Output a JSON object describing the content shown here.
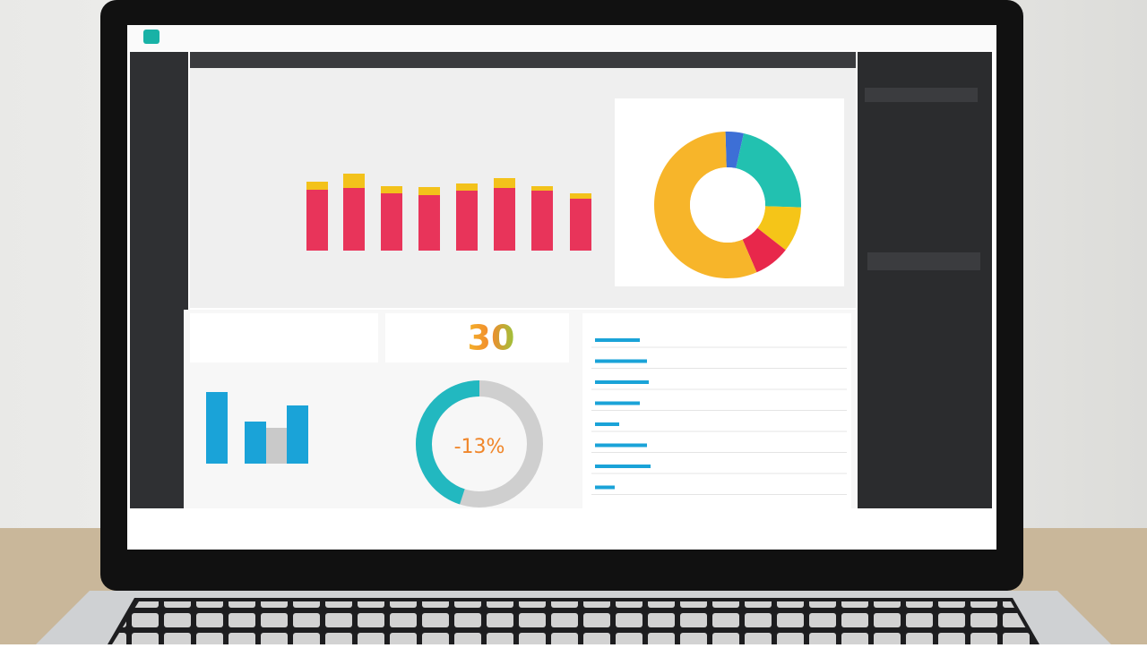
{
  "dashboard": {
    "stacked_bars": {
      "type": "bar",
      "ylim": [
        0,
        100
      ],
      "series": [
        {
          "color": "#e8345a",
          "values": [
            68,
            70,
            64,
            62,
            67,
            70,
            67,
            58
          ]
        },
        {
          "color": "#f3c21b",
          "values": [
            9,
            16,
            8,
            9,
            8,
            11,
            5,
            6
          ]
        }
      ]
    },
    "pie": {
      "type": "pie",
      "values": [
        4,
        22,
        10,
        8,
        56
      ],
      "colors": [
        "#3d6fd6",
        "#22c1b0",
        "#f5c518",
        "#e8274b",
        "#f7b52a"
      ]
    },
    "small_bars": {
      "type": "bar",
      "ylim": [
        0,
        100
      ],
      "values": [
        80,
        47,
        40,
        65
      ],
      "colors": [
        "#1aa3d8",
        "#1aa3d8",
        "#c9c9c9",
        "#1aa3d8"
      ]
    },
    "gauge": {
      "type": "pie",
      "value": 45,
      "ylim": [
        0,
        100
      ],
      "color": "#22b8c0"
    },
    "list_bars": {
      "type": "bar",
      "xlim": [
        0,
        100
      ],
      "values": [
        50,
        58,
        60,
        50,
        27,
        58,
        62,
        22
      ],
      "color": "#1aa3d8"
    },
    "kpis": {
      "big": "30",
      "percent": "-13%"
    }
  }
}
